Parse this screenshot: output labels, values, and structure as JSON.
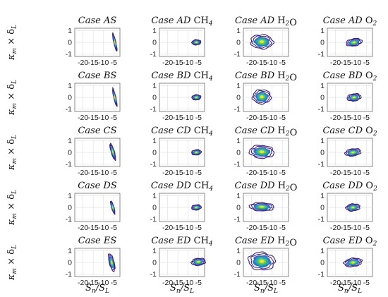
{
  "chart_data": {
    "type": "scatter",
    "description_style": "joint PDF contour plots",
    "rows": [
      "A",
      "B",
      "C",
      "D",
      "E"
    ],
    "columns": [
      "S",
      "D CH4",
      "D H2O",
      "D O2"
    ],
    "xlabel": "Sn/SL",
    "ylabel": "κm × δL",
    "xlim": [
      -24,
      -2
    ],
    "ylim": [
      -1.2,
      1.2
    ],
    "xticks": [
      -20,
      -15,
      -10,
      -5
    ],
    "yticks": [
      -1,
      0,
      1
    ],
    "grid": true,
    "colormap": [
      "#3b1f8c",
      "#2c6cc4",
      "#1eb0b0",
      "#5fce5f",
      "#f2e81a"
    ],
    "panels": [
      [
        {
          "title": "Case AS",
          "shape": {
            "cx": -4.5,
            "cy": 0.0,
            "sx": 0.5,
            "sy": 0.75,
            "rot": 8,
            "skew": 0.15
          }
        },
        {
          "title": "Case AD CH4",
          "shape": {
            "cx": -6.0,
            "cy": 0.0,
            "sx": 2.2,
            "sy": 0.22,
            "rot": 27,
            "skew": 0.0
          }
        },
        {
          "title": "Case AD H2O",
          "shape": {
            "cx": -15.0,
            "cy": 0.05,
            "sx": 5.5,
            "sy": 0.6,
            "rot": -4,
            "skew": 0.3
          }
        },
        {
          "title": "Case AD O2",
          "shape": {
            "cx": -11.0,
            "cy": 0.0,
            "sx": 4.0,
            "sy": 0.3,
            "rot": 22,
            "skew": 0.0
          }
        }
      ],
      [
        {
          "title": "Case BS",
          "shape": {
            "cx": -4.5,
            "cy": 0.0,
            "sx": 0.5,
            "sy": 0.75,
            "rot": 8,
            "skew": 0.15
          }
        },
        {
          "title": "Case BD CH4",
          "shape": {
            "cx": -6.0,
            "cy": 0.0,
            "sx": 2.2,
            "sy": 0.22,
            "rot": 27,
            "skew": 0.0
          }
        },
        {
          "title": "Case BD H2O",
          "shape": {
            "cx": -15.0,
            "cy": 0.05,
            "sx": 4.5,
            "sy": 0.6,
            "rot": -8,
            "skew": 0.3
          }
        },
        {
          "title": "Case BD O2",
          "shape": {
            "cx": -11.0,
            "cy": 0.0,
            "sx": 3.5,
            "sy": 0.3,
            "rot": 24,
            "skew": 0.0
          }
        }
      ],
      [
        {
          "title": "Case CS",
          "shape": {
            "cx": -5.5,
            "cy": 0.05,
            "sx": 0.8,
            "sy": 0.7,
            "rot": 10,
            "skew": 0.2
          }
        },
        {
          "title": "Case CD CH4",
          "shape": {
            "cx": -6.0,
            "cy": 0.0,
            "sx": 2.4,
            "sy": 0.22,
            "rot": 24,
            "skew": 0.0
          }
        },
        {
          "title": "Case CD H2O",
          "shape": {
            "cx": -15.0,
            "cy": 0.05,
            "sx": 6.0,
            "sy": 0.55,
            "rot": -3,
            "skew": 0.3
          }
        },
        {
          "title": "Case CD O2",
          "shape": {
            "cx": -11.5,
            "cy": 0.0,
            "sx": 4.0,
            "sy": 0.3,
            "rot": 20,
            "skew": 0.0
          }
        }
      ],
      [
        {
          "title": "Case DS",
          "shape": {
            "cx": -5.5,
            "cy": 0.0,
            "sx": 0.6,
            "sy": 0.55,
            "rot": 10,
            "skew": 0.1
          }
        },
        {
          "title": "Case DD CH4",
          "shape": {
            "cx": -6.0,
            "cy": 0.0,
            "sx": 2.4,
            "sy": 0.22,
            "rot": 24,
            "skew": 0.0
          }
        },
        {
          "title": "Case DD H2O",
          "shape": {
            "cx": -15.0,
            "cy": 0.05,
            "sx": 6.0,
            "sy": 0.35,
            "rot": -2,
            "skew": 0.2
          }
        },
        {
          "title": "Case DD O2",
          "shape": {
            "cx": -11.5,
            "cy": 0.0,
            "sx": 3.5,
            "sy": 0.3,
            "rot": 18,
            "skew": 0.0
          }
        }
      ],
      [
        {
          "title": "Case ES",
          "shape": {
            "cx": -6.0,
            "cy": 0.0,
            "sx": 1.2,
            "sy": 0.75,
            "rot": 8,
            "skew": 0.25
          }
        },
        {
          "title": "Case ED CH4",
          "shape": {
            "cx": -5.0,
            "cy": 0.05,
            "sx": 3.5,
            "sy": 0.3,
            "rot": 20,
            "skew": 0.0
          }
        },
        {
          "title": "Case ED H2O",
          "shape": {
            "cx": -15.0,
            "cy": 0.1,
            "sx": 6.5,
            "sy": 0.75,
            "rot": -4,
            "skew": 0.4
          }
        },
        {
          "title": "Case ED O2",
          "shape": {
            "cx": -11.5,
            "cy": 0.0,
            "sx": 4.5,
            "sy": 0.35,
            "rot": 20,
            "skew": 0.0
          }
        }
      ]
    ]
  }
}
